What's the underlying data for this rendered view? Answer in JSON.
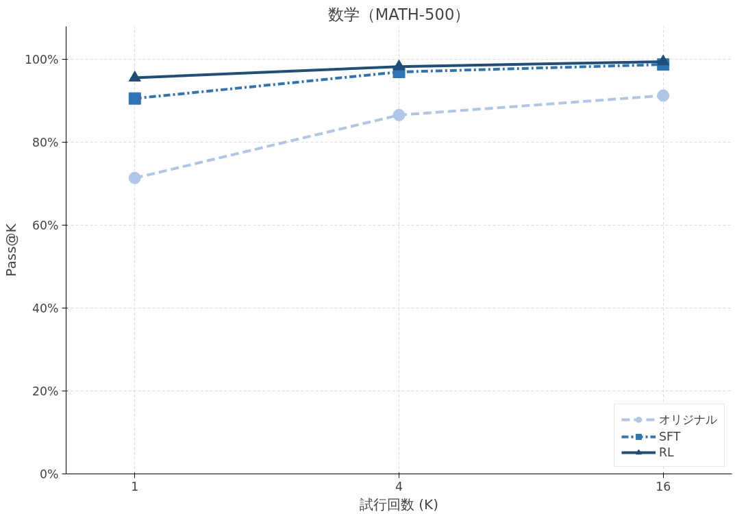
{
  "chart_data": {
    "type": "line",
    "title": "数学（MATH-500）",
    "xlabel": "試行回数 (K)",
    "ylabel": "Pass@K",
    "categories": [
      "1",
      "4",
      "16"
    ],
    "series": [
      {
        "name": "オリジナル",
        "color": "#aec7e8",
        "values": [
          71.4,
          86.6,
          91.3
        ],
        "marker": "circle",
        "line_style": "dashed"
      },
      {
        "name": "SFT",
        "color": "#2e75b6",
        "values": [
          90.6,
          97.0,
          98.8
        ],
        "marker": "square",
        "line_style": "dashdot"
      },
      {
        "name": "RL",
        "color": "#1f4e79",
        "values": [
          95.6,
          98.3,
          99.5
        ],
        "marker": "triangle",
        "line_style": "solid"
      }
    ],
    "ylim": [
      0,
      108
    ],
    "yticks": [
      {
        "value": 0,
        "label": "0%"
      },
      {
        "value": 20,
        "label": "20%"
      },
      {
        "value": 40,
        "label": "40%"
      },
      {
        "value": 60,
        "label": "60%"
      },
      {
        "value": 80,
        "label": "80%"
      },
      {
        "value": 100,
        "label": "100%"
      }
    ],
    "grid": true,
    "legend": "bottom right"
  }
}
